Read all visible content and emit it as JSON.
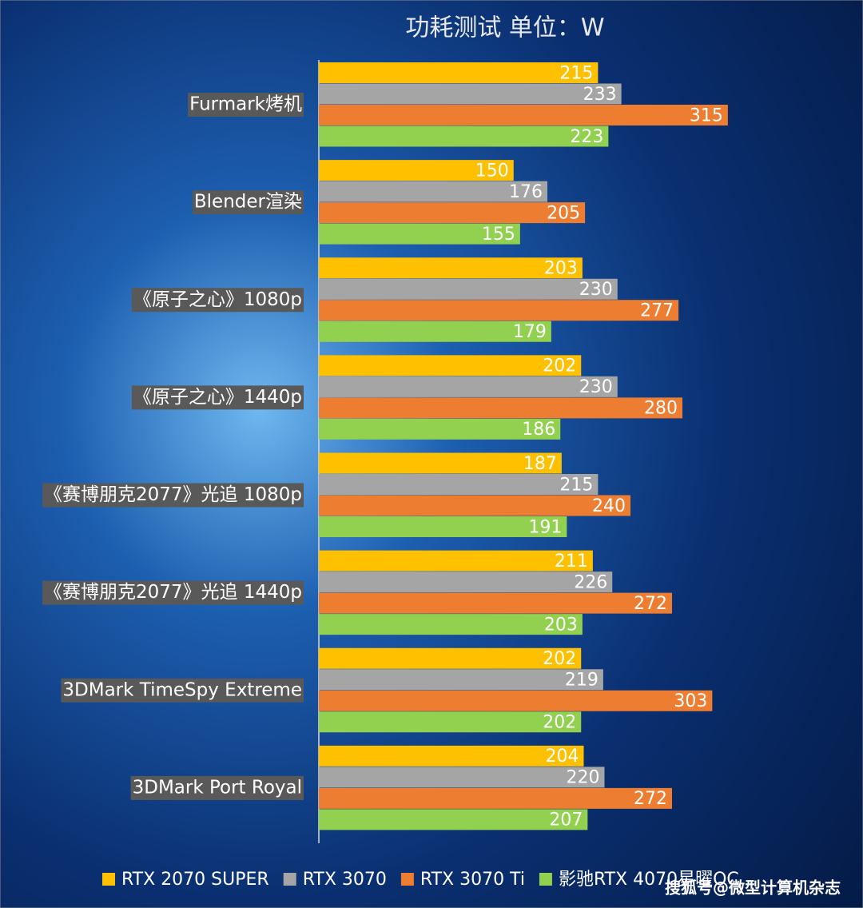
{
  "chart_data": {
    "type": "hbar",
    "title": "功耗测试 单位：W",
    "categories": [
      "Furmark烤机",
      "Blender渲染",
      "《原子之心》1080p",
      "《原子之心》1440p",
      "《赛博朋克2077》光追 1080p",
      "《赛博朋克2077》光追 1440p",
      "3DMark TimeSpy Extreme",
      "3DMark Port Royal"
    ],
    "series": [
      {
        "name": "RTX 2070 SUPER",
        "color": "#ffc000",
        "values": [
          215,
          150,
          203,
          202,
          187,
          211,
          202,
          204
        ]
      },
      {
        "name": "RTX 3070",
        "color": "#a5a5a5",
        "values": [
          233,
          176,
          230,
          230,
          215,
          226,
          219,
          220
        ]
      },
      {
        "name": "RTX 3070 Ti",
        "color": "#ed7d31",
        "values": [
          315,
          205,
          277,
          280,
          240,
          272,
          303,
          272
        ]
      },
      {
        "name": "影驰RTX 4070星曜OC",
        "color": "#92d050",
        "values": [
          223,
          155,
          179,
          186,
          191,
          203,
          202,
          207
        ]
      }
    ],
    "xlim": [
      0,
      400
    ],
    "watermark": "搜狐号@微型计算机杂志"
  }
}
